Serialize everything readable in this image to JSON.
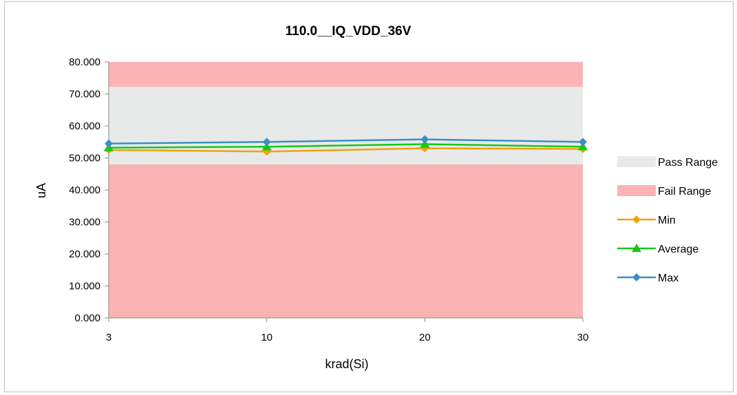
{
  "chart_data": {
    "type": "line",
    "title": "110.0__IQ_VDD_36V",
    "xlabel": "krad(Si)",
    "ylabel": "uA",
    "categories": [
      "3",
      "10",
      "20",
      "30"
    ],
    "ylim": [
      0,
      80
    ],
    "y_ticks": [
      "0.000",
      "10.000",
      "20.000",
      "30.000",
      "40.000",
      "50.000",
      "60.000",
      "70.000",
      "80.000"
    ],
    "y_tick_values": [
      0,
      10,
      20,
      30,
      40,
      50,
      60,
      70,
      80
    ],
    "bands": [
      {
        "name": "Fail Range",
        "from": 72.2,
        "to": 80,
        "color": "#fcb3b3"
      },
      {
        "name": "Pass Range",
        "from": 48,
        "to": 72.2,
        "color": "#e8eaea"
      },
      {
        "name": "Fail Range",
        "from": 0,
        "to": 48,
        "color": "#fcb3b3"
      }
    ],
    "series": [
      {
        "name": "Min",
        "values": [
          52.5,
          52.0,
          53.0,
          52.8
        ],
        "color": "#f0a30a",
        "marker": "diamond"
      },
      {
        "name": "Average",
        "values": [
          53.2,
          53.5,
          54.3,
          53.5
        ],
        "color": "#19c719",
        "marker": "triangle"
      },
      {
        "name": "Max",
        "values": [
          54.5,
          55.0,
          55.8,
          55.0
        ],
        "color": "#3b8fc4",
        "marker": "diamond"
      }
    ],
    "legend": [
      {
        "label": "Pass Range",
        "kind": "box",
        "color": "#e8eaea"
      },
      {
        "label": "Fail Range",
        "kind": "box",
        "color": "#fcb3b3"
      },
      {
        "label": "Min",
        "kind": "line",
        "color": "#f0a30a",
        "marker": "diamond"
      },
      {
        "label": "Average",
        "kind": "line",
        "color": "#19c719",
        "marker": "triangle"
      },
      {
        "label": "Max",
        "kind": "line",
        "color": "#3b8fc4",
        "marker": "diamond"
      }
    ],
    "legend_position": "right",
    "grid": false
  }
}
